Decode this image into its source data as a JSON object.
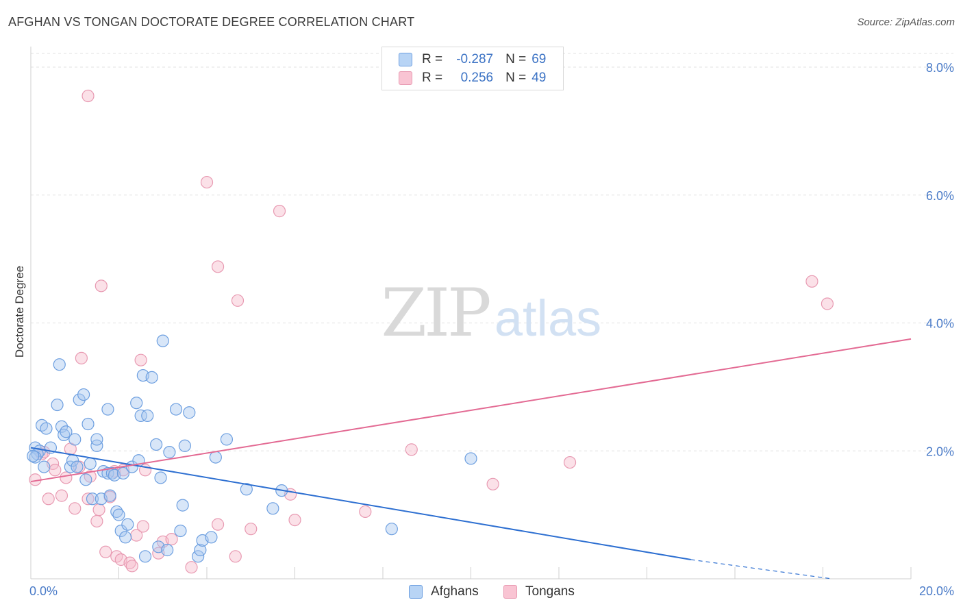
{
  "title": "AFGHAN VS TONGAN DOCTORATE DEGREE CORRELATION CHART",
  "source": "Source: ZipAtlas.com",
  "watermark": {
    "zip": "ZIP",
    "atlas": "atlas"
  },
  "legend": {
    "rows": [
      {
        "r_label": "R =",
        "r_value": "-0.287",
        "n_label": "N =",
        "n_value": "69",
        "color": "#b8d4f5",
        "border": "#6d9fe0"
      },
      {
        "r_label": "R =",
        "r_value": "0.256",
        "n_label": "N =",
        "n_value": "49",
        "color": "#f9c4d3",
        "border": "#e89ab2"
      }
    ]
  },
  "bottom_legend": {
    "afghans": "Afghans",
    "tongans": "Tongans"
  },
  "colors": {
    "blue_fill": "#a9c8f0",
    "blue_stroke": "#6d9fe0",
    "blue_line": "#2d6fd1",
    "pink_fill": "#f7bccd",
    "pink_stroke": "#e89ab2",
    "pink_line": "#e36a93",
    "tick_label": "#4a7bc8",
    "grid": "#e0e0e0"
  },
  "chart_data": {
    "type": "scatter",
    "title": "AFGHAN VS TONGAN DOCTORATE DEGREE CORRELATION CHART",
    "xlabel": "",
    "ylabel": "Doctorate Degree",
    "xlim": [
      0,
      20
    ],
    "ylim": [
      0,
      8.3
    ],
    "x_tick_labels": [
      "0.0%",
      "20.0%"
    ],
    "y_ticks": [
      2,
      4,
      6,
      8
    ],
    "y_tick_labels": [
      "2.0%",
      "4.0%",
      "6.0%",
      "8.0%"
    ],
    "grid": true,
    "series": [
      {
        "name": "Afghans",
        "r": -0.287,
        "n": 69,
        "trend": {
          "x0": 0,
          "y0": 2.05,
          "x1": 15,
          "y1": 0.3,
          "dashed_to_x": 18.2,
          "dashed_to_y": 0.0
        },
        "points": [
          [
            0.1,
            2.05
          ],
          [
            0.2,
            2.0
          ],
          [
            0.15,
            1.95
          ],
          [
            0.1,
            1.9
          ],
          [
            0.3,
            1.75
          ],
          [
            0.25,
            2.4
          ],
          [
            0.35,
            2.35
          ],
          [
            0.45,
            2.05
          ],
          [
            0.6,
            2.72
          ],
          [
            0.65,
            3.35
          ],
          [
            0.7,
            2.38
          ],
          [
            0.75,
            2.25
          ],
          [
            0.8,
            2.3
          ],
          [
            0.9,
            1.75
          ],
          [
            0.95,
            1.85
          ],
          [
            1.0,
            2.18
          ],
          [
            1.05,
            1.75
          ],
          [
            1.1,
            2.8
          ],
          [
            1.2,
            2.88
          ],
          [
            1.25,
            1.55
          ],
          [
            1.3,
            2.42
          ],
          [
            1.35,
            1.8
          ],
          [
            1.4,
            1.25
          ],
          [
            1.5,
            2.08
          ],
          [
            1.5,
            2.18
          ],
          [
            1.6,
            1.25
          ],
          [
            1.65,
            1.68
          ],
          [
            1.75,
            1.65
          ],
          [
            1.75,
            2.65
          ],
          [
            1.8,
            1.3
          ],
          [
            1.85,
            1.65
          ],
          [
            1.9,
            1.62
          ],
          [
            1.95,
            1.05
          ],
          [
            2.0,
            1.0
          ],
          [
            2.05,
            0.75
          ],
          [
            2.1,
            1.65
          ],
          [
            2.15,
            0.65
          ],
          [
            2.2,
            0.85
          ],
          [
            2.3,
            1.75
          ],
          [
            2.4,
            2.75
          ],
          [
            2.45,
            1.85
          ],
          [
            2.5,
            2.55
          ],
          [
            2.55,
            3.18
          ],
          [
            2.6,
            0.35
          ],
          [
            2.65,
            2.55
          ],
          [
            2.75,
            3.15
          ],
          [
            2.85,
            2.1
          ],
          [
            2.9,
            0.5
          ],
          [
            2.95,
            1.58
          ],
          [
            3.0,
            3.72
          ],
          [
            3.1,
            0.45
          ],
          [
            3.15,
            1.98
          ],
          [
            3.3,
            2.65
          ],
          [
            3.4,
            0.75
          ],
          [
            3.45,
            1.15
          ],
          [
            3.5,
            2.08
          ],
          [
            3.6,
            2.6
          ],
          [
            3.8,
            0.35
          ],
          [
            3.85,
            0.45
          ],
          [
            3.9,
            0.6
          ],
          [
            4.1,
            0.65
          ],
          [
            4.2,
            1.9
          ],
          [
            4.45,
            2.18
          ],
          [
            4.9,
            1.4
          ],
          [
            5.5,
            1.1
          ],
          [
            5.7,
            1.38
          ],
          [
            8.2,
            0.78
          ],
          [
            10.0,
            1.88
          ],
          [
            0.05,
            1.92
          ]
        ]
      },
      {
        "name": "Tongans",
        "r": 0.256,
        "n": 49,
        "trend": {
          "x0": 0,
          "y0": 1.52,
          "x1": 20,
          "y1": 3.75
        },
        "points": [
          [
            0.1,
            1.55
          ],
          [
            0.25,
            1.95
          ],
          [
            0.3,
            1.98
          ],
          [
            0.4,
            1.25
          ],
          [
            0.5,
            1.8
          ],
          [
            0.55,
            1.7
          ],
          [
            0.7,
            1.3
          ],
          [
            0.8,
            1.58
          ],
          [
            0.9,
            2.03
          ],
          [
            1.0,
            1.1
          ],
          [
            1.1,
            1.75
          ],
          [
            1.15,
            3.45
          ],
          [
            1.3,
            1.25
          ],
          [
            1.35,
            1.6
          ],
          [
            1.3,
            7.55
          ],
          [
            1.5,
            0.9
          ],
          [
            1.55,
            1.08
          ],
          [
            1.6,
            4.58
          ],
          [
            1.7,
            0.42
          ],
          [
            1.8,
            1.28
          ],
          [
            1.9,
            1.68
          ],
          [
            1.95,
            0.35
          ],
          [
            2.05,
            0.3
          ],
          [
            2.1,
            1.7
          ],
          [
            2.25,
            0.25
          ],
          [
            2.3,
            0.2
          ],
          [
            2.4,
            0.68
          ],
          [
            2.5,
            3.42
          ],
          [
            2.55,
            0.82
          ],
          [
            2.6,
            1.7
          ],
          [
            2.9,
            0.4
          ],
          [
            3.0,
            0.58
          ],
          [
            3.2,
            0.62
          ],
          [
            3.65,
            0.18
          ],
          [
            4.0,
            6.2
          ],
          [
            4.25,
            0.85
          ],
          [
            4.25,
            4.88
          ],
          [
            4.65,
            0.35
          ],
          [
            4.7,
            4.35
          ],
          [
            5.0,
            0.78
          ],
          [
            5.65,
            5.75
          ],
          [
            5.9,
            1.32
          ],
          [
            6.0,
            0.92
          ],
          [
            7.6,
            1.05
          ],
          [
            8.65,
            2.02
          ],
          [
            10.5,
            1.48
          ],
          [
            12.25,
            1.82
          ],
          [
            17.75,
            4.65
          ],
          [
            18.1,
            4.3
          ]
        ]
      }
    ]
  }
}
